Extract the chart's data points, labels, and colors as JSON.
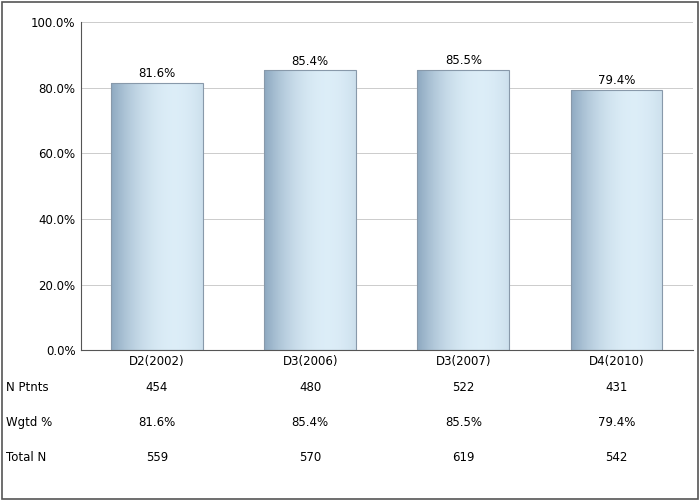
{
  "categories": [
    "D2(2002)",
    "D3(2006)",
    "D3(2007)",
    "D4(2010)"
  ],
  "values": [
    81.6,
    85.4,
    85.5,
    79.4
  ],
  "labels": [
    "81.6%",
    "85.4%",
    "85.5%",
    "79.4%"
  ],
  "n_ptnts": [
    454,
    480,
    522,
    431
  ],
  "wgtd_pct": [
    "81.6%",
    "85.4%",
    "85.5%",
    "79.4%"
  ],
  "total_n": [
    559,
    570,
    619,
    542
  ],
  "ylim": [
    0,
    100
  ],
  "yticks": [
    0,
    20,
    40,
    60,
    80,
    100
  ],
  "ytick_labels": [
    "0.0%",
    "20.0%",
    "40.0%",
    "60.0%",
    "80.0%",
    "100.0%"
  ],
  "bar_color_dark": "#8da8c0",
  "bar_color_light": "#ddeef8",
  "background_color": "#ffffff",
  "grid_color": "#cccccc",
  "label_fontsize": 8.5,
  "tick_fontsize": 8.5,
  "table_fontsize": 8.5,
  "bar_width": 0.6,
  "row_labels": [
    "N Ptnts",
    "Wgtd %",
    "Total N"
  ]
}
